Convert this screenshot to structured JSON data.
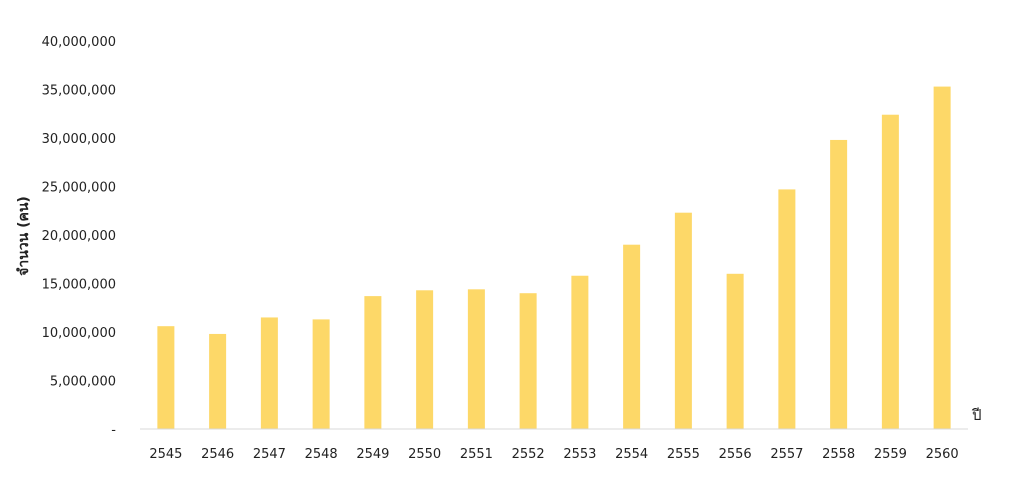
{
  "chart_data": {
    "type": "bar",
    "categories": [
      "2545",
      "2546",
      "2547",
      "2548",
      "2549",
      "2550",
      "2551",
      "2552",
      "2553",
      "2554",
      "2555",
      "2556",
      "2557",
      "2558",
      "2559",
      "2560"
    ],
    "values": [
      10600000,
      9800000,
      11500000,
      11300000,
      13700000,
      14300000,
      14400000,
      14000000,
      15800000,
      19000000,
      22300000,
      16000000,
      24700000,
      29800000,
      32400000,
      35300000
    ],
    "ylabel": "จำนวน (คน)",
    "xlabel": "ปี",
    "ylim": [
      0,
      40000000
    ],
    "yticks": [
      "-",
      "5,000,000",
      "10,000,000",
      "15,000,000",
      "20,000,000",
      "25,000,000",
      "30,000,000",
      "35,000,000",
      "40,000,000"
    ],
    "ytick_values": [
      0,
      5000000,
      10000000,
      15000000,
      20000000,
      25000000,
      30000000,
      35000000,
      40000000
    ],
    "grid": false,
    "legend": "none",
    "bar_color": "#FDD868",
    "axis_color": "#D9D9D9"
  }
}
